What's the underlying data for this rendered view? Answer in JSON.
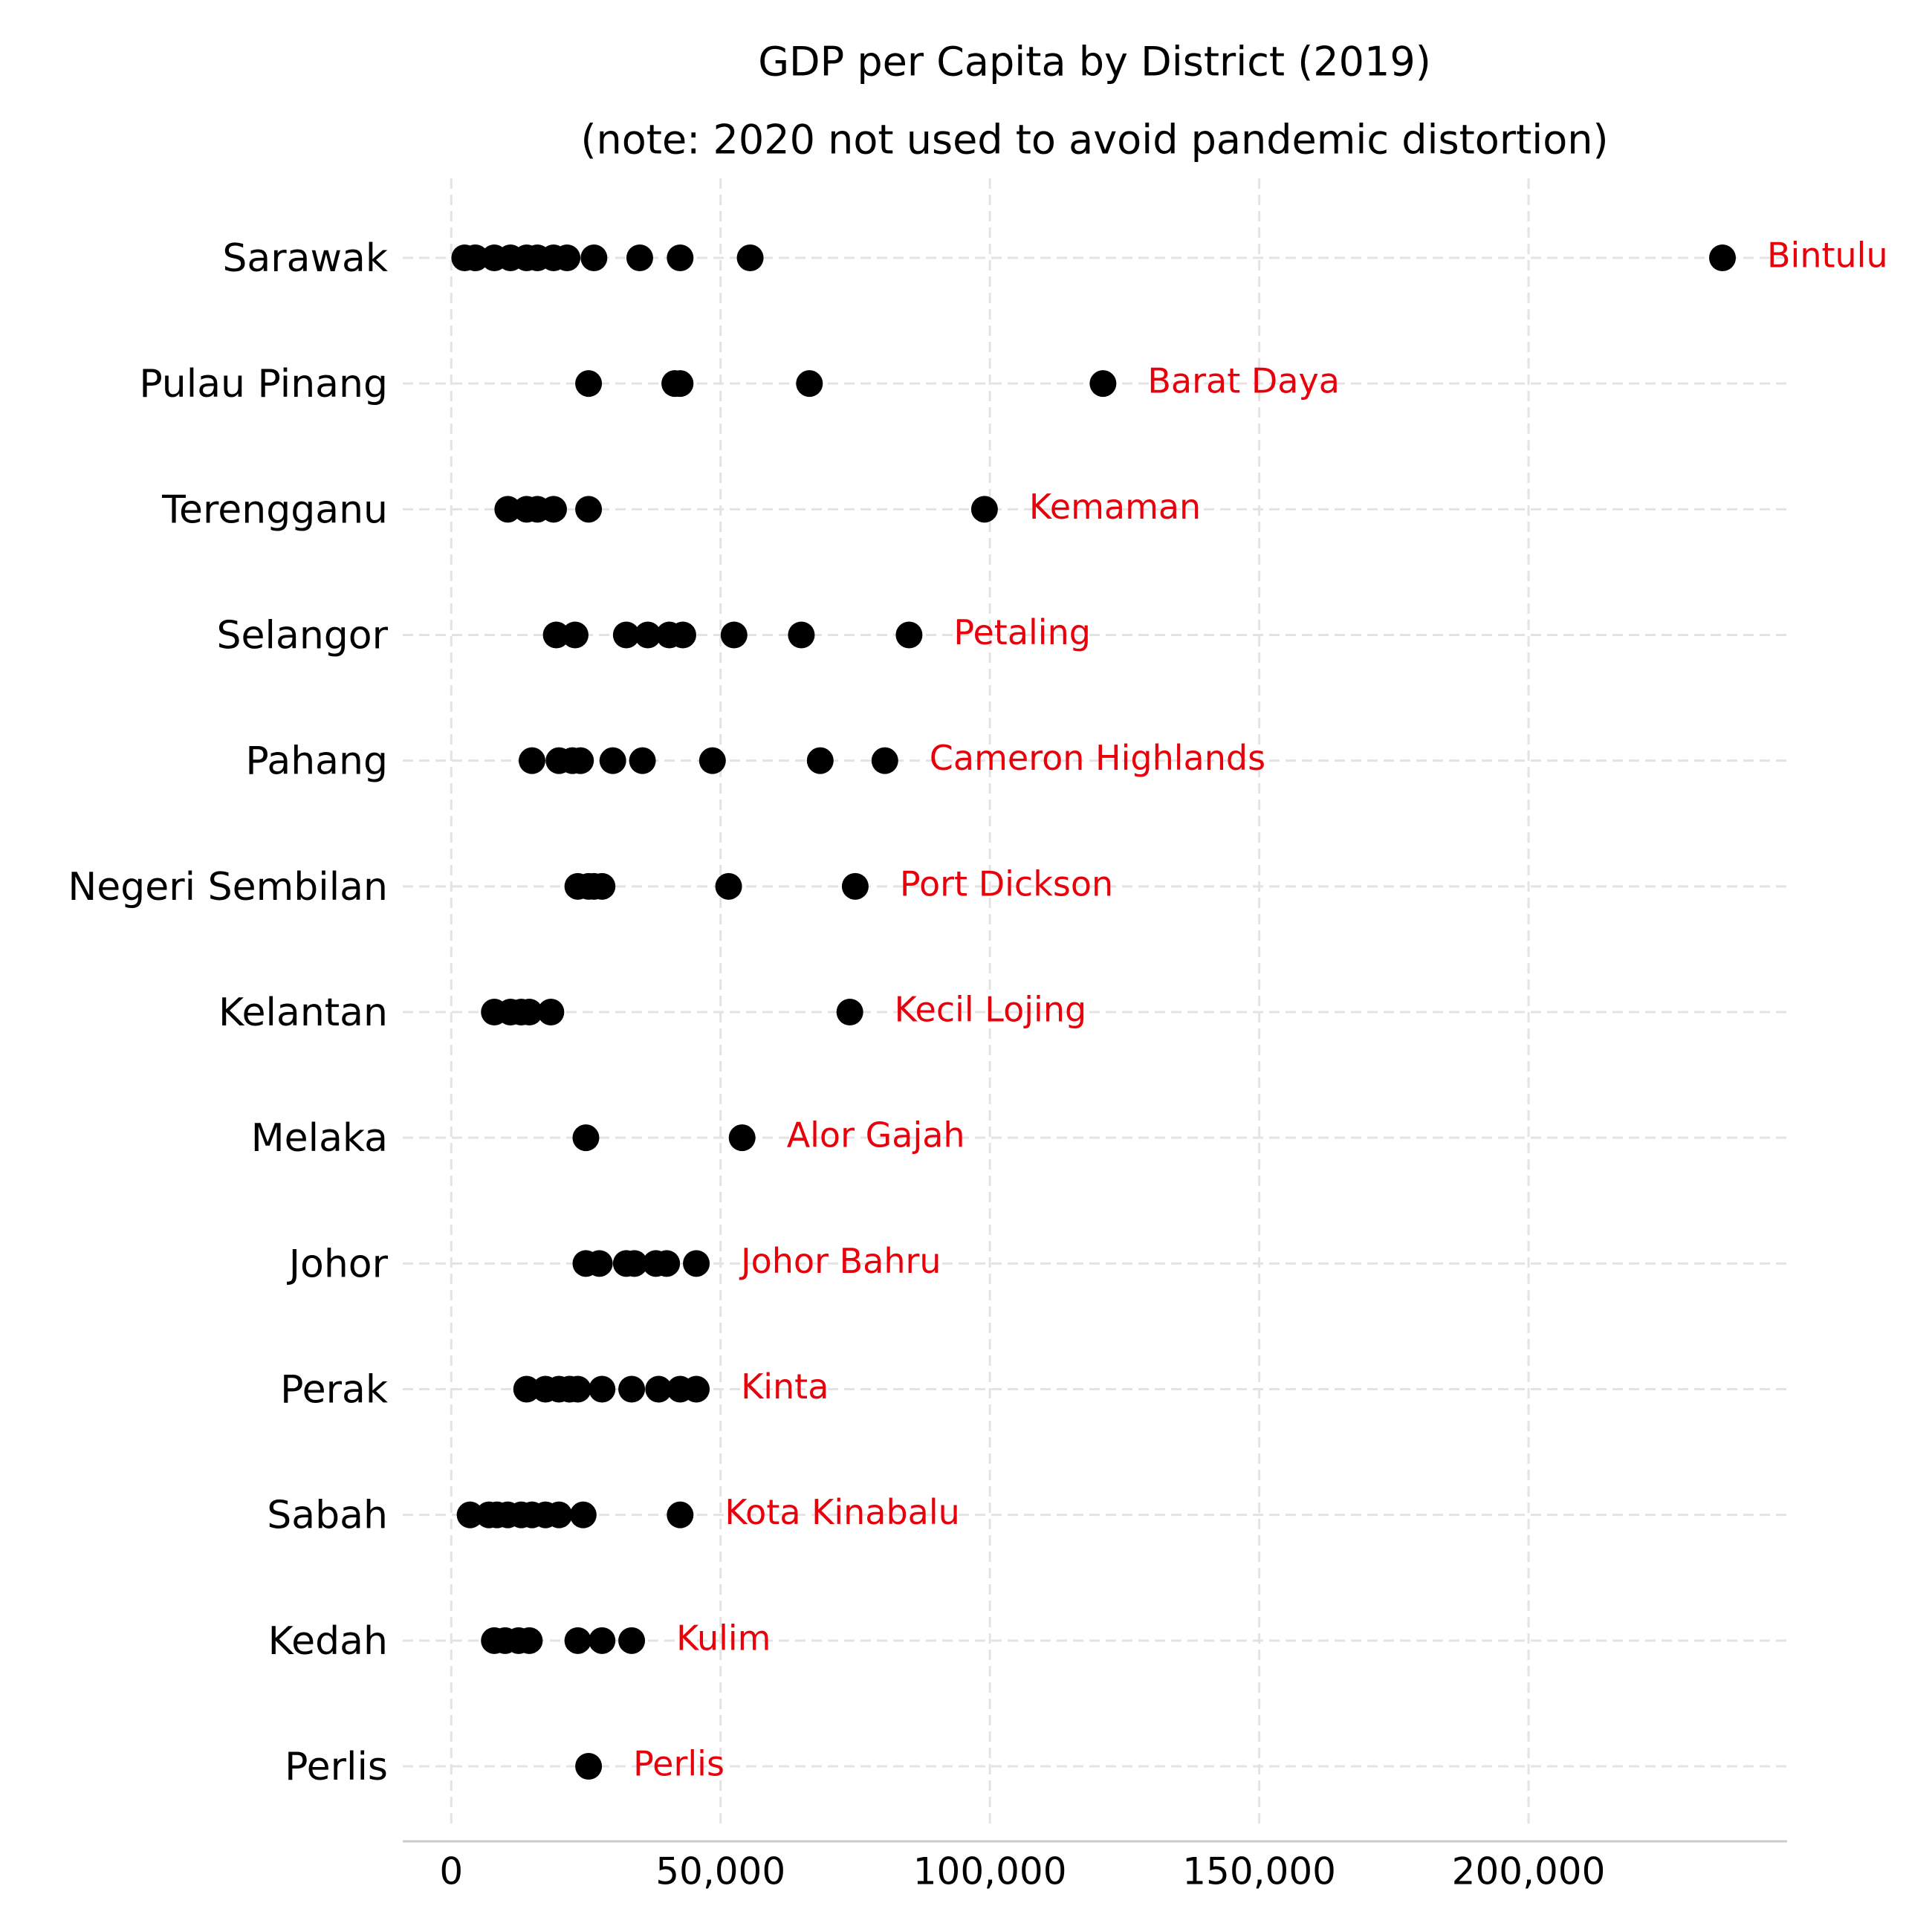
{
  "chart_data": {
    "type": "strip",
    "title": "GDP per Capita by District (2019)",
    "subtitle": "(note: 2020 not used to avoid pandemic distortion)",
    "point_color": "#000000",
    "label_color": "#e8000b",
    "xlim": [
      -9000,
      248000
    ],
    "xticks": [
      0,
      {
        "value": 50000,
        "label": "50,000"
      },
      {
        "value": 100000,
        "label": "100,000"
      },
      {
        "value": 150000,
        "label": "150,000"
      },
      {
        "value": 200000,
        "label": "200,000"
      }
    ],
    "grid": true,
    "groups": [
      {
        "name": "Sarawak",
        "label": "Bintulu",
        "values": [
          2500,
          4500,
          8000,
          11000,
          14000,
          16000,
          19000,
          21500,
          26500,
          35000,
          42500,
          55500,
          236000
        ]
      },
      {
        "name": "Pulau Pinang",
        "label": "Barat Daya",
        "values": [
          25500,
          41500,
          42500,
          66500,
          121000
        ]
      },
      {
        "name": "Terengganu",
        "label": "Kemaman",
        "values": [
          10500,
          14000,
          16000,
          19000,
          25500,
          99000
        ]
      },
      {
        "name": "Selangor",
        "label": "Petaling",
        "values": [
          19500,
          23000,
          32500,
          36500,
          40500,
          43000,
          52500,
          65000,
          85000
        ]
      },
      {
        "name": "Pahang",
        "label": "Cameron Highlands",
        "values": [
          15000,
          20000,
          22500,
          24000,
          30000,
          35500,
          48500,
          68500,
          80500
        ]
      },
      {
        "name": "Negeri Sembilan",
        "label": "Port Dickson",
        "values": [
          23500,
          25500,
          26500,
          28000,
          51500,
          75000
        ]
      },
      {
        "name": "Kelantan",
        "label": "Kecil Lojing",
        "values": [
          8000,
          11000,
          13000,
          14500,
          18500,
          74000
        ]
      },
      {
        "name": "Melaka",
        "label": "Alor Gajah",
        "values": [
          25000,
          54000
        ]
      },
      {
        "name": "Johor",
        "label": "Johor Bahru",
        "values": [
          25000,
          27500,
          32500,
          34000,
          38000,
          40000,
          45500
        ]
      },
      {
        "name": "Perak",
        "label": "Kinta",
        "values": [
          14000,
          17500,
          20000,
          22000,
          23500,
          28000,
          33500,
          38500,
          42500,
          45500
        ]
      },
      {
        "name": "Sabah",
        "label": "Kota Kinabalu",
        "values": [
          3500,
          7000,
          8500,
          10500,
          13000,
          15000,
          17500,
          20000,
          24500,
          42500
        ]
      },
      {
        "name": "Kedah",
        "label": "Kulim",
        "values": [
          8000,
          10000,
          12500,
          14500,
          23500,
          28000,
          33500
        ]
      },
      {
        "name": "Perlis",
        "label": "Perlis",
        "values": [
          25500
        ]
      }
    ]
  }
}
